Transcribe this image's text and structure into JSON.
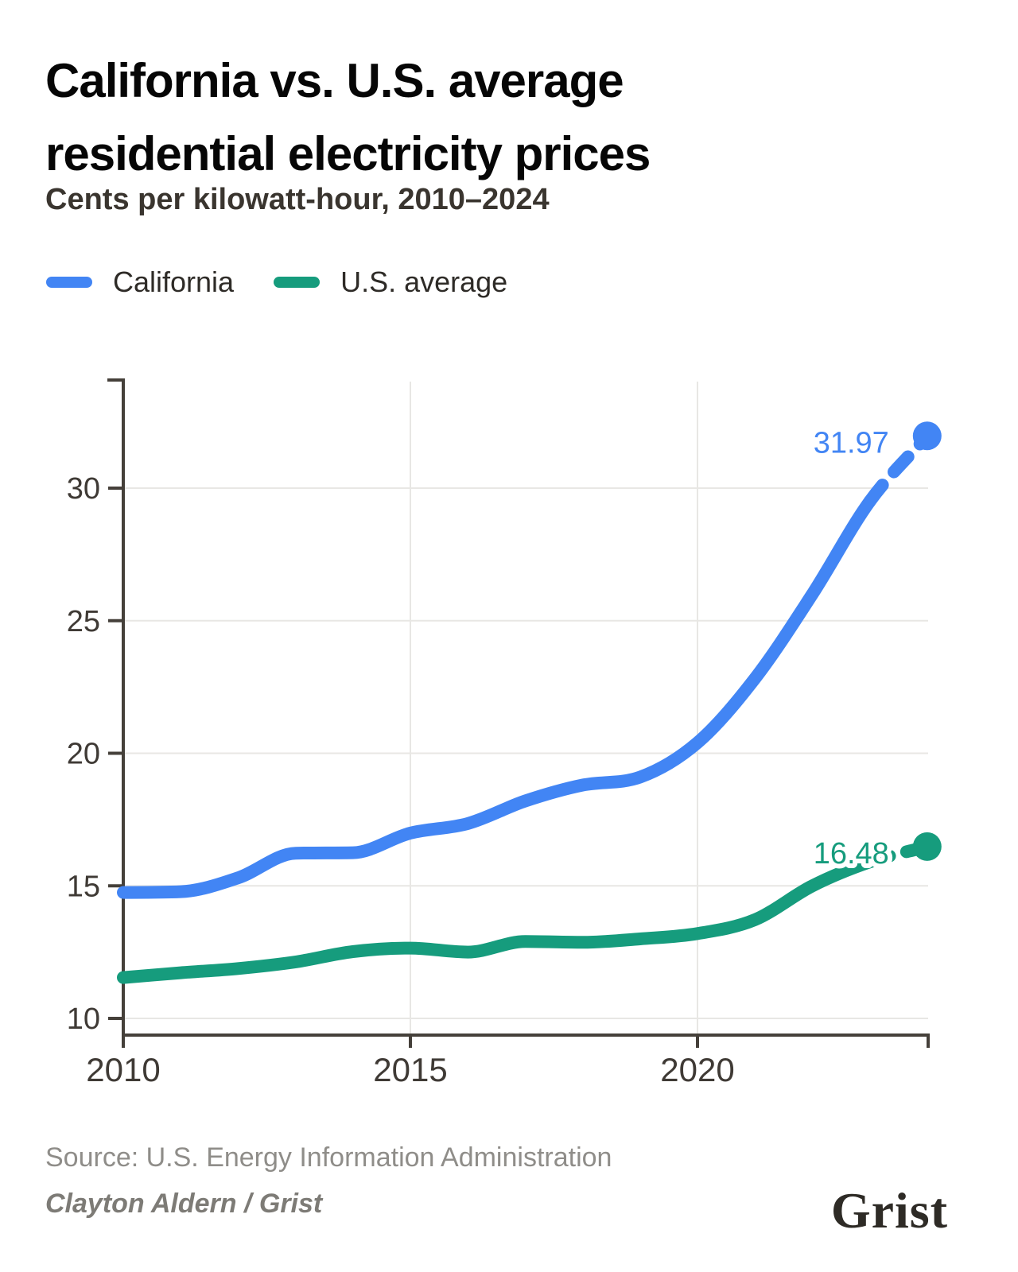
{
  "header": {
    "title_line1": "California vs. U.S. average",
    "title_line2": "residential electricity prices",
    "subtitle": "Cents per kilowatt-hour, 2010–2024"
  },
  "legend": [
    {
      "label": "California",
      "color": "#4285f4"
    },
    {
      "label": "U.S. average",
      "color": "#169c7d"
    }
  ],
  "footer": {
    "source": "Source: U.S. Energy Information Administration",
    "byline": "Clayton Aldern / Grist",
    "logo": "Grist"
  },
  "chart_data": {
    "type": "line",
    "title": "California vs. U.S. average residential electricity prices",
    "units": "Cents per kilowatt-hour",
    "x": [
      2010,
      2011,
      2012,
      2013,
      2014,
      2015,
      2016,
      2017,
      2018,
      2019,
      2020,
      2021,
      2022,
      2023,
      2024
    ],
    "series": [
      {
        "name": "California",
        "color": "#4285f4",
        "values": [
          14.75,
          14.78,
          15.3,
          16.23,
          16.25,
          16.99,
          17.35,
          18.2,
          18.8,
          19.1,
          20.4,
          22.82,
          26.0,
          29.5,
          31.97
        ],
        "end_label": "31.97"
      },
      {
        "name": "U.S. average",
        "color": "#169c7d",
        "values": [
          11.54,
          11.72,
          11.88,
          12.13,
          12.52,
          12.65,
          12.5,
          12.9,
          12.87,
          13.0,
          13.2,
          13.72,
          15.0,
          15.9,
          16.48
        ],
        "end_label": "16.48"
      }
    ],
    "xticks": [
      2010,
      2015,
      2020
    ],
    "xgridlines": [
      2015,
      2020
    ],
    "yticks": [
      10,
      15,
      20,
      25,
      30
    ],
    "xlim": [
      2010,
      2024
    ],
    "ylim": [
      8.7,
      34.1
    ],
    "grid": true,
    "legend_position": "top",
    "last_segment_dashed": true,
    "colors": {
      "axis": "#45403a",
      "gridline": "#e8e7e4",
      "tick_label": "#3f3a35"
    }
  }
}
